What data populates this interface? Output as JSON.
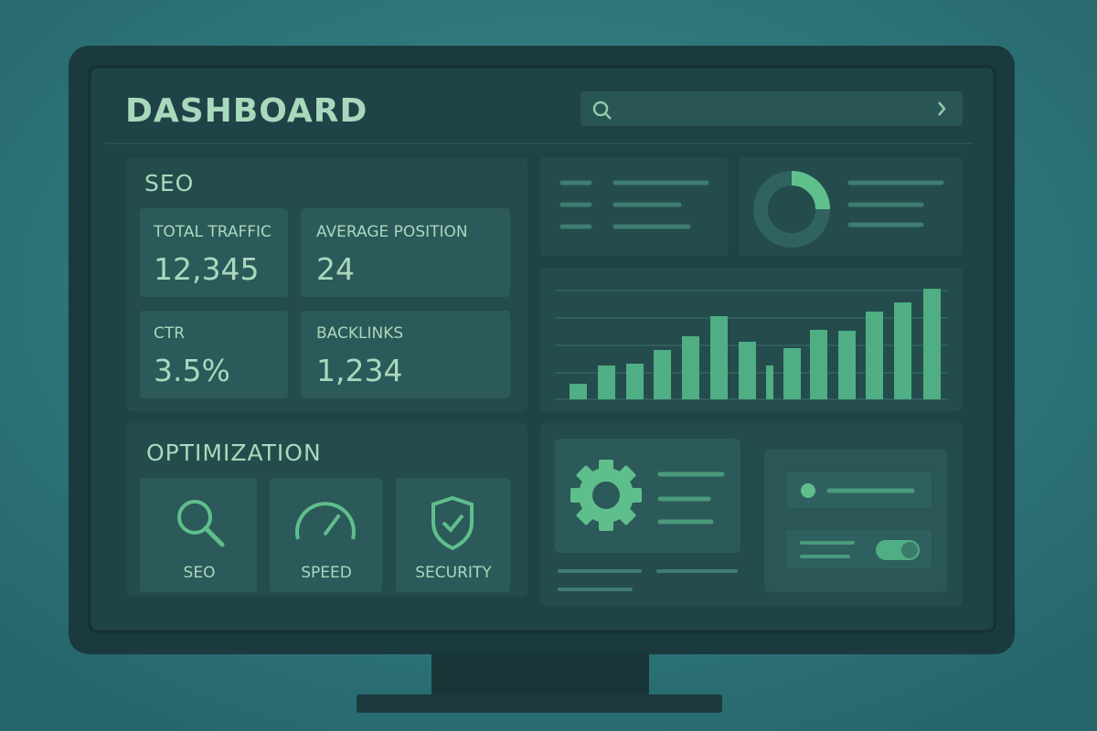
{
  "header": {
    "title": "DASHBOARD"
  },
  "seo": {
    "title": "SEO",
    "metrics": [
      {
        "label": "TOTAL TRAFFIC",
        "value": "12,345"
      },
      {
        "label": "AVERAGE POSITION",
        "value": "24"
      },
      {
        "label": "CTR",
        "value": "3.5%"
      },
      {
        "label": "BACKLINKS",
        "value": "1,234"
      }
    ]
  },
  "optimization": {
    "title": "OPTIMIZATION",
    "items": [
      "SEO",
      "SPEED",
      "SECURITY"
    ]
  }
}
